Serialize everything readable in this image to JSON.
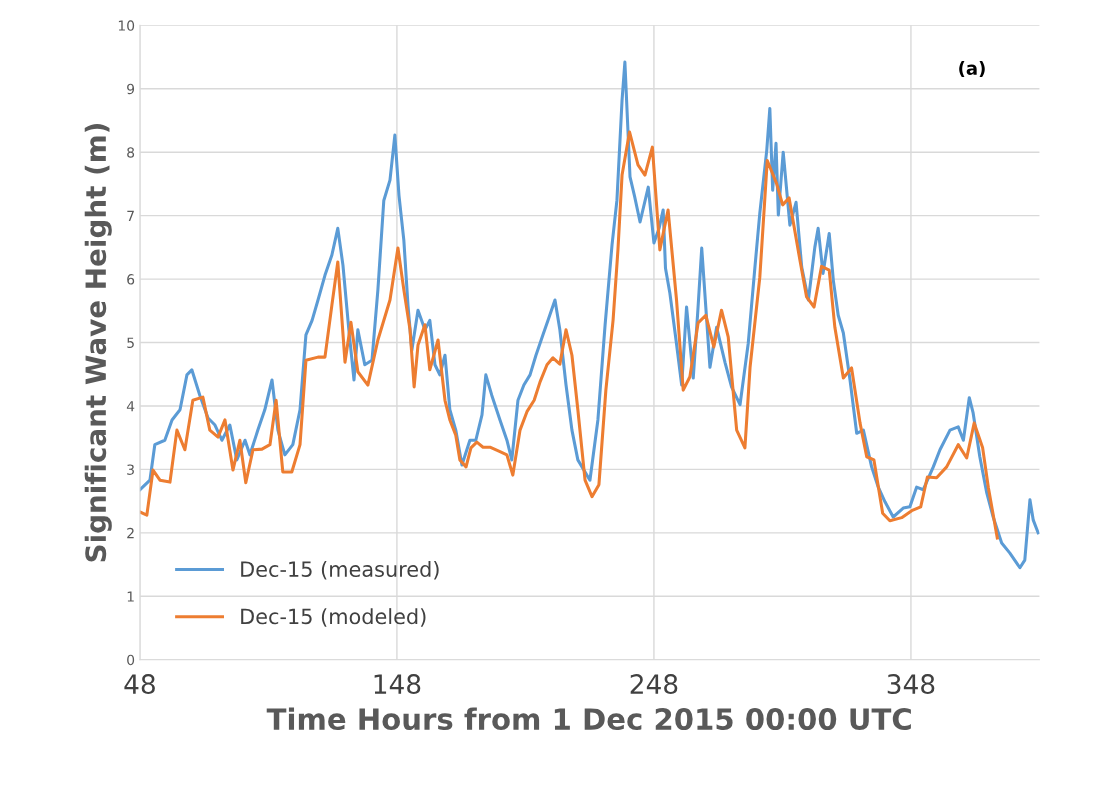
{
  "chart_data": {
    "type": "line",
    "xlabel": "Time Hours from 1 Dec 2015 00:00 UTC",
    "ylabel": "Significant Wave Height (m)",
    "annotations": [
      "(a)"
    ],
    "xlim": [
      48,
      398
    ],
    "xticks": [
      48,
      148,
      248,
      348
    ],
    "ylim": [
      0,
      10
    ],
    "yticks": [
      0,
      1,
      2,
      3,
      4,
      5,
      6,
      7,
      8,
      9,
      10
    ],
    "grid": true,
    "legend": "bottom left",
    "line_style": "solid",
    "marker": "none",
    "series": [
      {
        "name": "Dec-15 (measured)",
        "color": "#5b9bd5",
        "x": [
          48,
          51.9,
          53.8,
          57.7,
          60.5,
          63.6,
          66.3,
          68.2,
          71.3,
          74.5,
          77.2,
          79.9,
          83,
          85.7,
          88.9,
          90.8,
          93.9,
          96.6,
          99.4,
          101.7,
          104.4,
          107.5,
          110.3,
          112.6,
          115,
          117.3,
          120,
          122.7,
          125,
          127,
          129.3,
          131.3,
          132.8,
          135.5,
          138.3,
          140.6,
          142.9,
          145.3,
          147.2,
          148.8,
          150.7,
          152.3,
          153.8,
          156.2,
          158.9,
          160.8,
          162.8,
          164.7,
          166.7,
          168.6,
          170.9,
          173.3,
          176.4,
          178.7,
          181.1,
          182.6,
          184.9,
          188.1,
          190.8,
          192.7,
          195.1,
          197.4,
          199.8,
          202.1,
          204.8,
          206.8,
          209.5,
          211.4,
          213.8,
          216.1,
          218.4,
          223.1,
          226.2,
          229,
          231.7,
          233.6,
          235.6,
          236.7,
          238.7,
          240.5,
          242.6,
          245.8,
          248,
          250,
          251.6,
          252.5,
          254.2,
          256.6,
          258.8,
          260.7,
          263.3,
          265.1,
          266.6,
          269.8,
          272.4,
          275.7,
          278.2,
          281.5,
          284.7,
          287.3,
          289.2,
          291.9,
          293.1,
          294.2,
          295.5,
          296.4,
          298.3,
          300.9,
          303.3,
          305.5,
          308.1,
          310.6,
          311.9,
          313.8,
          316.2,
          317.8,
          319.7,
          321.7,
          324.3,
          326.9,
          329.5,
          332.7,
          335.3,
          337.9,
          341.1,
          345,
          347.6,
          350.2,
          352.8,
          356.7,
          359.3,
          363.2,
          366.4,
          368.4,
          370.7,
          372.2,
          374.8,
          377.5,
          380,
          383.3,
          386.5,
          390.4,
          392.3,
          394.3,
          395.6,
          397.5
        ],
        "values": [
          2.68,
          2.83,
          3.39,
          3.46,
          3.78,
          3.94,
          4.49,
          4.57,
          4.17,
          3.81,
          3.7,
          3.46,
          3.7,
          3.15,
          3.46,
          3.23,
          3.62,
          3.94,
          4.41,
          3.62,
          3.23,
          3.39,
          3.94,
          5.12,
          5.35,
          5.67,
          6.06,
          6.38,
          6.8,
          6.22,
          5.2,
          4.41,
          5.2,
          4.65,
          4.72,
          5.83,
          7.24,
          7.56,
          8.27,
          7.32,
          6.61,
          5.59,
          4.88,
          5.51,
          5.2,
          5.35,
          4.65,
          4.49,
          4.8,
          3.94,
          3.62,
          3.07,
          3.46,
          3.46,
          3.86,
          4.49,
          4.17,
          3.78,
          3.46,
          3.15,
          4.09,
          4.33,
          4.49,
          4.8,
          5.12,
          5.35,
          5.67,
          5.2,
          4.33,
          3.62,
          3.15,
          2.83,
          3.78,
          5.28,
          6.54,
          7.24,
          8.82,
          9.42,
          7.61,
          7.3,
          6.9,
          7.45,
          6.57,
          6.8,
          7.09,
          6.17,
          5.78,
          5.04,
          4.33,
          5.56,
          4.44,
          5.51,
          6.49,
          4.61,
          5.24,
          4.68,
          4.3,
          4.02,
          4.99,
          6.19,
          7.04,
          8.03,
          8.69,
          7.4,
          8.14,
          7.01,
          8.0,
          6.85,
          7.21,
          6.19,
          5.67,
          6.5,
          6.8,
          6.09,
          6.72,
          5.98,
          5.43,
          5.15,
          4.41,
          3.57,
          3.62,
          3.04,
          2.72,
          2.49,
          2.25,
          2.39,
          2.41,
          2.72,
          2.68,
          3.04,
          3.31,
          3.62,
          3.67,
          3.46,
          4.13,
          3.89,
          3.2,
          2.63,
          2.25,
          1.84,
          1.68,
          1.45,
          1.57,
          2.52,
          2.2,
          2.0
        ]
      },
      {
        "name": "Dec-15 (modeled)",
        "color": "#ed7d31",
        "x": [
          48,
          50.7,
          53.1,
          55.8,
          59.7,
          62.4,
          65.5,
          68.6,
          72.5,
          75.2,
          78.4,
          81.1,
          84.2,
          86.9,
          89.2,
          92,
          95.5,
          98.6,
          101,
          103.6,
          107.1,
          110.3,
          112.6,
          117.3,
          120,
          122.7,
          125,
          127.8,
          130.1,
          132.8,
          136.7,
          140.6,
          145.3,
          148.4,
          150.7,
          153.1,
          154.7,
          156.2,
          158.9,
          160.8,
          164,
          166.7,
          168.6,
          170.9,
          172.5,
          174.9,
          176.8,
          179.1,
          181.5,
          184.2,
          188.1,
          190.8,
          193.1,
          195.9,
          198.6,
          201.4,
          203.7,
          206.4,
          208.7,
          211.4,
          213.8,
          216.1,
          218.4,
          221.2,
          223.9,
          226.6,
          229.3,
          232.1,
          234,
          235.6,
          238.5,
          241.8,
          244.5,
          247.4,
          250.3,
          253.5,
          256.8,
          259.4,
          262,
          265.2,
          268.2,
          271.3,
          274.3,
          276.9,
          280.2,
          283.4,
          285.4,
          289.2,
          292.1,
          295.7,
          298.1,
          300.6,
          304.8,
          307.4,
          310.3,
          313.2,
          316.2,
          318.4,
          321.7,
          324.9,
          328.2,
          330.8,
          333.6,
          337,
          339.8,
          344.4,
          348.3,
          351.8,
          354.4,
          358,
          361.9,
          366.4,
          369.7,
          372.6,
          375.9,
          378.1,
          381.6
        ],
        "values": [
          2.33,
          2.28,
          2.99,
          2.83,
          2.8,
          3.62,
          3.31,
          4.09,
          4.14,
          3.62,
          3.51,
          3.78,
          2.99,
          3.46,
          2.79,
          3.31,
          3.32,
          3.39,
          4.09,
          2.96,
          2.96,
          3.39,
          4.72,
          4.77,
          4.77,
          5.59,
          6.27,
          4.69,
          5.32,
          4.54,
          4.33,
          5.04,
          5.67,
          6.49,
          5.83,
          5.2,
          4.3,
          4.96,
          5.28,
          4.57,
          5.04,
          4.09,
          3.78,
          3.54,
          3.15,
          3.04,
          3.34,
          3.43,
          3.35,
          3.35,
          3.28,
          3.23,
          2.91,
          3.62,
          3.91,
          4.09,
          4.38,
          4.65,
          4.76,
          4.66,
          5.2,
          4.8,
          3.94,
          2.83,
          2.57,
          2.76,
          4.25,
          5.35,
          6.46,
          7.64,
          8.32,
          7.8,
          7.64,
          8.08,
          6.46,
          7.09,
          5.67,
          4.25,
          4.46,
          5.31,
          5.43,
          4.93,
          5.51,
          5.09,
          3.62,
          3.34,
          4.61,
          6.03,
          7.87,
          7.51,
          7.17,
          7.28,
          6.3,
          5.72,
          5.56,
          6.2,
          6.14,
          5.24,
          4.44,
          4.6,
          3.73,
          3.2,
          3.15,
          2.31,
          2.19,
          2.24,
          2.35,
          2.41,
          2.88,
          2.87,
          3.04,
          3.39,
          3.18,
          3.73,
          3.34,
          2.72,
          1.92
        ]
      }
    ]
  }
}
